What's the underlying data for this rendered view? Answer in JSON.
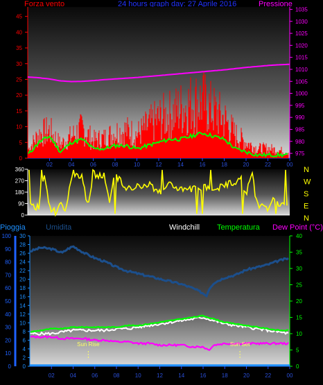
{
  "header": {
    "left": "Forza vento",
    "center": "24 hours graph day:  27 Aprile 2016",
    "right": "Pressione"
  },
  "colors": {
    "wind": "#ff0000",
    "gust": "#ff0000",
    "avg": "#00ff00",
    "pressure": "#ff00ff",
    "winddir": "#ffff00",
    "rain": "#1e90ff",
    "humidity": "#1c4f8c",
    "windchill": "#ffffff",
    "temperature": "#00ff00",
    "dewpoint": "#ff00ff",
    "sun": "#ffff66",
    "axis_left": "#ff0000",
    "axis_right": "#ff00ff",
    "axis_hum": "#1f62ff",
    "axis_temp": "#00ff00",
    "axis_rain": "#1e90ff"
  },
  "chart_data": [
    {
      "type": "line",
      "title": "24 hours graph day:  27 Aprile 2016",
      "x_ticks": [
        "02",
        "04",
        "06",
        "08",
        "10",
        "12",
        "14",
        "16",
        "18",
        "20",
        "22",
        "00"
      ],
      "ylabel_left": "Forza vento",
      "ylabel_right": "Pressione",
      "yticks_left": [
        "0",
        "5",
        "10",
        "15",
        "20",
        "25",
        "30",
        "35",
        "40",
        "45"
      ],
      "yticks_right": [
        "975",
        "980",
        "985",
        "990",
        "995",
        "1000",
        "1005",
        "1010",
        "1015",
        "1020",
        "1025",
        "1030",
        "1035"
      ],
      "ylim_left": [
        0,
        48
      ],
      "ylim_right": [
        973,
        1036
      ],
      "series": [
        {
          "name": "Pressione",
          "axis": "right",
          "x": [
            0,
            1,
            2,
            3,
            4,
            5,
            6,
            7,
            8,
            9,
            10,
            11,
            12,
            13,
            14,
            15,
            16,
            17,
            18,
            19,
            20,
            21,
            22,
            23,
            24
          ],
          "values": [
            1006.8,
            1006.5,
            1006.0,
            1005.2,
            1004.9,
            1005.0,
            1005.3,
            1005.7,
            1006.0,
            1006.3,
            1006.6,
            1007.0,
            1007.4,
            1007.8,
            1008.2,
            1008.6,
            1009.0,
            1009.4,
            1009.8,
            1010.3,
            1010.8,
            1011.2,
            1011.6,
            1011.9,
            1012.1
          ]
        },
        {
          "name": "",
          "axis": "left",
          "x": [
            0,
            1,
            2,
            3,
            4,
            5,
            6,
            7,
            8,
            9,
            10,
            11,
            12,
            13,
            14,
            15,
            16,
            17,
            18,
            19,
            20,
            21,
            22,
            23,
            24
          ],
          "values": [
            1,
            5,
            7,
            2,
            5,
            6,
            3,
            3,
            4,
            4,
            3,
            4,
            5,
            6,
            6,
            7,
            8,
            7,
            6,
            3,
            2,
            1,
            1,
            1,
            1
          ]
        },
        {
          "name": "",
          "axis": "left",
          "style": "bars",
          "x": [
            0,
            1,
            2,
            3,
            4,
            5,
            6,
            7,
            8,
            9,
            10,
            11,
            12,
            13,
            14,
            15,
            16,
            17,
            18,
            19,
            20,
            21,
            22,
            23,
            24
          ],
          "values": [
            4,
            12,
            14,
            7,
            11,
            15,
            9,
            10,
            13,
            14,
            12,
            16,
            20,
            22,
            25,
            28,
            29,
            24,
            20,
            12,
            8,
            5,
            5,
            4,
            3
          ]
        }
      ]
    },
    {
      "type": "line",
      "title": "",
      "x_ticks": [],
      "yticks": [
        "0",
        "90",
        "180",
        "270",
        "360"
      ],
      "ylim": [
        0,
        360
      ],
      "compass": [
        "N",
        "W",
        "S",
        "E",
        "N"
      ],
      "series": [
        {
          "name": "",
          "x": [
            0,
            1,
            1.5,
            2,
            2.5,
            3,
            3.5,
            4,
            5,
            5.5,
            6,
            7,
            7.5,
            8,
            9,
            10,
            11,
            12,
            13,
            14,
            15,
            16,
            17,
            18,
            19,
            19.5,
            20,
            20.5,
            21,
            22,
            22.5,
            23,
            24
          ],
          "values": [
            90,
            60,
            330,
            60,
            20,
            90,
            20,
            300,
            300,
            60,
            320,
            310,
            90,
            330,
            200,
            230,
            250,
            180,
            250,
            200,
            200,
            220,
            210,
            230,
            260,
            320,
            150,
            340,
            90,
            60,
            110,
            80,
            110
          ]
        }
      ]
    },
    {
      "type": "line",
      "title": "",
      "x_ticks": [
        "02",
        "04",
        "06",
        "08",
        "10",
        "12",
        "14",
        "16",
        "18",
        "20",
        "22",
        "00"
      ],
      "labels_top": [
        "Pioggia",
        "Umidita",
        "Windchill",
        "Temperatura",
        "Dew Point (°C)"
      ],
      "yticks_left_outer": [
        "0",
        "10",
        "20",
        "30",
        "40",
        "50",
        "60",
        "70",
        "80",
        "90",
        "100"
      ],
      "yticks_left_inner": [
        "0",
        "2",
        "4",
        "6",
        "8",
        "10",
        "12",
        "14",
        "16",
        "18",
        "20",
        "22",
        "24",
        "26",
        "28",
        "30"
      ],
      "yticks_right": [
        "0",
        "5",
        "10",
        "15",
        "20",
        "25",
        "30",
        "35",
        "40"
      ],
      "ylim_humidity": [
        0,
        100
      ],
      "ylim_temp": [
        0,
        40
      ],
      "ylim_rain": [
        0,
        30
      ],
      "annotations": [
        {
          "text": "Sun Rise",
          "x": 5.4
        },
        {
          "text": "Sun Set",
          "x": 19.4
        }
      ],
      "series": [
        {
          "name": "Umidita",
          "axis": "humidity",
          "x": [
            0,
            1,
            2,
            3,
            3.5,
            4,
            5,
            6,
            7,
            8,
            9,
            10,
            11,
            12,
            13,
            14,
            15,
            16,
            16.3,
            16.6,
            17,
            18,
            19,
            20,
            21,
            22,
            23,
            24
          ],
          "values": [
            88,
            91,
            90,
            87,
            90,
            92,
            87,
            83,
            80,
            76,
            73,
            71,
            69,
            67,
            65,
            63,
            60,
            56,
            54,
            60,
            64,
            68,
            70,
            74,
            76,
            78,
            81,
            83
          ]
        },
        {
          "name": "Windchill",
          "axis": "temp",
          "x": [
            0,
            1,
            2,
            3,
            4,
            5,
            6,
            7,
            8,
            9,
            10,
            11,
            12,
            13,
            14,
            15,
            16,
            17,
            18,
            19,
            20,
            21,
            22,
            23,
            24
          ],
          "values": [
            10,
            10,
            10,
            10.5,
            11,
            11,
            11,
            11,
            11.5,
            11.5,
            12,
            12.5,
            13,
            13.5,
            14,
            14.5,
            15,
            14,
            13,
            12.5,
            12,
            11.5,
            11,
            10.5,
            10
          ]
        },
        {
          "name": "Temperatura",
          "axis": "temp",
          "x": [
            0,
            1,
            2,
            3,
            4,
            5,
            6,
            7,
            8,
            9,
            10,
            11,
            12,
            13,
            14,
            15,
            16,
            17,
            18,
            19,
            20,
            21,
            22,
            23,
            24
          ],
          "values": [
            10.5,
            11,
            11.5,
            11.5,
            12,
            12,
            12,
            12,
            12,
            12.5,
            12.5,
            13,
            13.5,
            14,
            14.5,
            15,
            15.5,
            14.5,
            13.5,
            13,
            12.5,
            12,
            11.5,
            11,
            11
          ]
        },
        {
          "name": "Dew Point (°C)",
          "axis": "temp",
          "x": [
            0,
            1,
            2,
            3,
            4,
            5,
            6,
            7,
            8,
            9,
            10,
            11,
            12,
            13,
            14,
            15,
            16,
            16.5,
            17,
            18,
            19,
            20,
            21,
            22,
            23,
            24
          ],
          "values": [
            9,
            9,
            9,
            8.5,
            8.5,
            8.5,
            8,
            8,
            7.5,
            7.5,
            7,
            7,
            6.5,
            6.5,
            6.5,
            6,
            6,
            5,
            6.5,
            7,
            7,
            7,
            7,
            7,
            7,
            7
          ]
        },
        {
          "name": "Pioggia",
          "axis": "rain",
          "x": [
            0,
            24
          ],
          "values": [
            0.2,
            0.2
          ]
        }
      ]
    }
  ]
}
